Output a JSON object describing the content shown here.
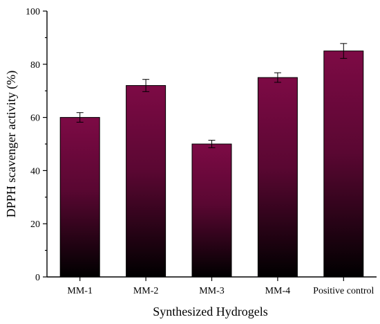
{
  "chart_data": {
    "type": "bar",
    "title": "",
    "xlabel": "Synthesized Hydrogels",
    "ylabel": "DPPH scavenger activity (%)",
    "ylim": [
      0,
      100
    ],
    "yticks": [
      0,
      20,
      40,
      60,
      80,
      100
    ],
    "categories": [
      "MM-1",
      "MM-2",
      "MM-3",
      "MM-4",
      "Positive control"
    ],
    "values": [
      60,
      72,
      50,
      75,
      85
    ],
    "errors": [
      1.8,
      2.3,
      1.4,
      1.8,
      2.8
    ],
    "grid": false,
    "legend": "none",
    "bar_gradient": [
      "#7d0a45",
      "#000000"
    ]
  }
}
